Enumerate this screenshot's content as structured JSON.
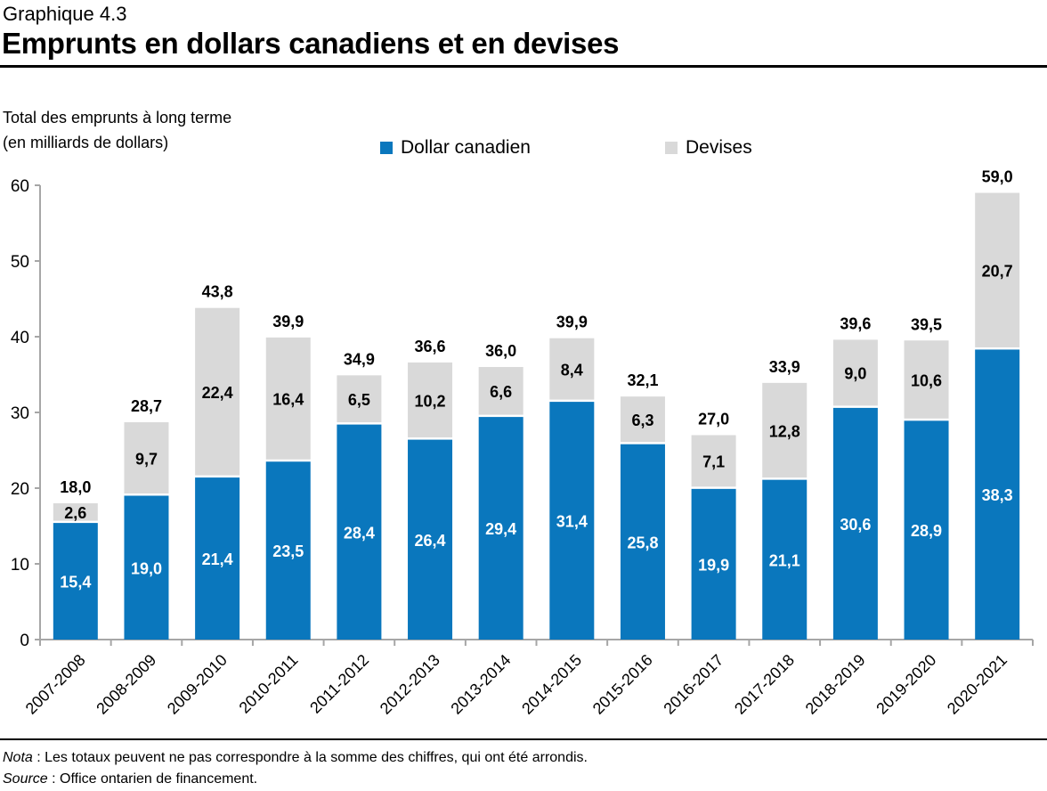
{
  "header": {
    "supertitle": "Graphique 4.3",
    "title": "Emprunts en dollars canadiens et en devises"
  },
  "footer": {
    "note_label": "Nota",
    "note_text": " : Les totaux peuvent ne pas correspondre à la somme des chiffres, qui ont été arrondis.",
    "source_label": "Source",
    "source_text": " : Office ontarien de financement."
  },
  "chart_data": {
    "type": "bar",
    "stacked": true,
    "ylabel_line1": "Total des emprunts à long terme",
    "ylabel_line2": "(en milliards de dollars)",
    "ylim": [
      0,
      60
    ],
    "yticks": [
      "0",
      "10",
      "20",
      "30",
      "40",
      "50",
      "60"
    ],
    "grid": false,
    "legend_position": "top",
    "categories": [
      "2007-2008",
      "2008-2009",
      "2009-2010",
      "2010-2011",
      "2011-2012",
      "2012-2013",
      "2013-2014",
      "2014-2015",
      "2015-2016",
      "2016-2017",
      "2017-2018",
      "2018-2019",
      "2019-2020",
      "2020-2021"
    ],
    "series": [
      {
        "name": "Dollar canadien",
        "color": "#0a77bd",
        "values": [
          15.4,
          19.0,
          21.4,
          23.5,
          28.4,
          26.4,
          29.4,
          31.4,
          25.8,
          19.9,
          21.1,
          30.6,
          28.9,
          38.3
        ],
        "labels": [
          "15,4",
          "19,0",
          "21,4",
          "23,5",
          "28,4",
          "26,4",
          "29,4",
          "31,4",
          "25,8",
          "19,9",
          "21,1",
          "30,6",
          "28,9",
          "38,3"
        ]
      },
      {
        "name": "Devises",
        "color": "#d9d9d9",
        "values": [
          2.6,
          9.7,
          22.4,
          16.4,
          6.5,
          10.2,
          6.6,
          8.4,
          6.3,
          7.1,
          12.8,
          9.0,
          10.6,
          20.7
        ],
        "labels": [
          "2,6",
          "9,7",
          "22,4",
          "16,4",
          "6,5",
          "10,2",
          "6,6",
          "8,4",
          "6,3",
          "7,1",
          "12,8",
          "9,0",
          "10,6",
          "20,7"
        ]
      }
    ],
    "totals": [
      18.0,
      28.7,
      43.8,
      39.9,
      34.9,
      36.6,
      36.0,
      39.9,
      32.1,
      27.0,
      33.9,
      39.6,
      39.5,
      59.0
    ],
    "total_labels": [
      "18,0",
      "28,7",
      "43,8",
      "39,9",
      "34,9",
      "36,6",
      "36,0",
      "39,9",
      "32,1",
      "27,0",
      "33,9",
      "39,6",
      "39,5",
      "59,0"
    ]
  }
}
